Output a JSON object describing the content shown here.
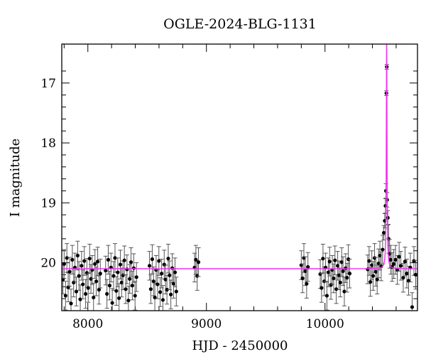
{
  "chart_data": {
    "type": "scatter",
    "title": "OGLE-2024-BLG-1131",
    "xlabel": "HJD - 2450000",
    "ylabel": "I magnitude",
    "xlim": [
      7780,
      10780
    ],
    "ylim": [
      20.8,
      16.35
    ],
    "y_inverted": true,
    "x_ticks": [
      8000,
      9000,
      10000
    ],
    "y_ticks": [
      17,
      18,
      19,
      20
    ],
    "grid": false,
    "legend": "none",
    "colors": {
      "points": "#000000",
      "errorbars": "#555555",
      "model": "#ee33ee"
    },
    "model_curve": {
      "x0": 10520,
      "baseline": 20.1,
      "peak": 16.3,
      "tE": 3.5
    },
    "series": [
      {
        "x": [
          7790,
          7800,
          7812,
          7823,
          7834,
          7846,
          7858,
          7869,
          7880,
          7891,
          7903,
          7914,
          7925,
          7936,
          7947,
          7958,
          7970,
          7981,
          7992,
          8003,
          8015,
          8026,
          8037,
          8048,
          8060,
          8071,
          8083,
          8094,
          8105,
          8150,
          8161,
          8172,
          8184,
          8195,
          8206,
          8217,
          8229,
          8240,
          8252,
          8263,
          8274,
          8285,
          8296,
          8308,
          8319,
          8330,
          8342,
          8353,
          8364,
          8375,
          8387,
          8398,
          8410,
          8520,
          8531,
          8543,
          8554,
          8565,
          8576,
          8588,
          8599,
          8610,
          8622,
          8633,
          8644,
          8655,
          8667,
          8678,
          8689,
          8700,
          8712,
          8723,
          8735,
          8746,
          8900,
          8911,
          8922,
          8933,
          9800,
          9811,
          9822,
          9834,
          9845,
          9856,
          9960,
          9971,
          9983,
          9994,
          10005,
          10016,
          10028,
          10039,
          10050,
          10062,
          10073,
          10084,
          10095,
          10107,
          10118,
          10129,
          10141,
          10152,
          10163,
          10174,
          10186,
          10197,
          10208,
          10360,
          10372,
          10383,
          10395,
          10406,
          10418,
          10429,
          10440,
          10452,
          10463,
          10474,
          10486,
          10496,
          10504,
          10510,
          10514,
          10518,
          10521,
          10524,
          10530,
          10536,
          10545,
          10555,
          10566,
          10580,
          10595,
          10610,
          10625,
          10640,
          10660,
          10675,
          10690,
          10705,
          10720,
          10735,
          10750,
          10765
        ],
        "y": [
          20.28,
          20.02,
          20.55,
          19.92,
          20.41,
          20.15,
          20.68,
          19.95,
          20.33,
          20.08,
          20.48,
          19.88,
          20.22,
          20.61,
          20.05,
          20.36,
          19.97,
          20.52,
          20.17,
          20.42,
          19.93,
          20.27,
          20.12,
          20.58,
          20.02,
          20.31,
          19.98,
          20.45,
          20.18,
          20.13,
          20.52,
          19.95,
          20.38,
          20.08,
          20.67,
          20.22,
          19.92,
          20.47,
          20.16,
          20.59,
          20.03,
          20.33,
          20.21,
          19.96,
          20.44,
          20.11,
          20.63,
          20.27,
          19.99,
          20.38,
          20.09,
          20.55,
          20.24,
          20.05,
          20.44,
          19.94,
          20.31,
          20.58,
          20.12,
          20.36,
          19.97,
          20.49,
          20.18,
          20.62,
          20.03,
          20.28,
          20.45,
          19.93,
          20.21,
          20.53,
          20.09,
          20.35,
          20.16,
          20.48,
          20.08,
          19.95,
          20.22,
          19.99,
          20.04,
          20.26,
          19.92,
          20.14,
          20.35,
          20.07,
          20.19,
          20.42,
          19.93,
          20.31,
          20.08,
          20.55,
          20.16,
          19.98,
          20.37,
          20.12,
          20.26,
          19.96,
          20.44,
          20.05,
          20.21,
          20.33,
          19.99,
          20.14,
          20.48,
          20.09,
          20.25,
          19.94,
          20.18,
          20.11,
          19.97,
          20.32,
          20.04,
          20.22,
          19.92,
          20.15,
          20.28,
          20.01,
          19.88,
          20.06,
          19.78,
          19.5,
          19.3,
          19.05,
          18.8,
          17.17,
          16.73,
          18.95,
          19.25,
          19.6,
          19.85,
          19.95,
          20.07,
          20.02,
          19.95,
          20.12,
          19.9,
          20.05,
          20.25,
          19.98,
          20.18,
          20.3,
          20.08,
          20.74,
          19.97,
          20.2
        ]
      }
    ]
  }
}
